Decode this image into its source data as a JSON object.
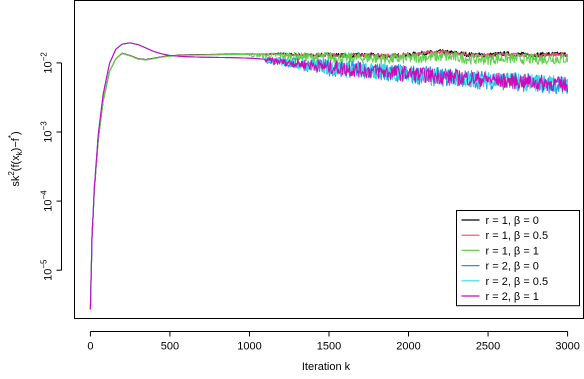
{
  "chart_data": {
    "type": "line",
    "xlabel": "Iteration  k",
    "ylabel_parts": [
      "sk",
      "2",
      "(f(x",
      "k",
      ")−f",
      "*",
      ")"
    ],
    "y_scale": "log",
    "xlim": [
      -100,
      3100
    ],
    "ylim": [
      2e-06,
      0.08
    ],
    "x_ticks": [
      0,
      500,
      1000,
      1500,
      2000,
      2500,
      3000
    ],
    "x_tick_labels": [
      "0",
      "500",
      "1000",
      "1500",
      "2000",
      "2500",
      "3000"
    ],
    "y_ticks": [
      {
        "value": 0.01,
        "base": "10",
        "exp": "−2"
      },
      {
        "value": 0.001,
        "base": "10",
        "exp": "−3"
      },
      {
        "value": 0.0001,
        "base": "10",
        "exp": "−4"
      },
      {
        "value": 1e-05,
        "base": "10",
        "exp": "−5"
      }
    ],
    "grid": false,
    "legend_position": "bottom-right",
    "series": [
      {
        "name": "r = 1, β = 0",
        "color": "#000000",
        "x": [
          0,
          10,
          25,
          50,
          80,
          120,
          160,
          200,
          250,
          300,
          350,
          400,
          450,
          500,
          600,
          700,
          800,
          900,
          1000,
          1100,
          1200,
          1300,
          1400,
          1500,
          1600,
          1700,
          1800,
          1900,
          2000,
          2100,
          2200,
          2300,
          2400,
          2500,
          2600,
          2700,
          2800,
          2900,
          3000
        ],
        "y": [
          2.7e-06,
          3e-05,
          0.00015,
          0.0008,
          0.0028,
          0.0075,
          0.0115,
          0.0138,
          0.0128,
          0.0115,
          0.0112,
          0.0117,
          0.0123,
          0.0127,
          0.0131,
          0.0132,
          0.0133,
          0.0134,
          0.0135,
          0.0134,
          0.0137,
          0.0133,
          0.0131,
          0.0134,
          0.0131,
          0.0133,
          0.0131,
          0.0129,
          0.0134,
          0.0142,
          0.0148,
          0.0142,
          0.0134,
          0.0133,
          0.0139,
          0.0136,
          0.0134,
          0.0137,
          0.0136
        ],
        "noise_from": 1100,
        "noise": 0.12
      },
      {
        "name": "r = 1, β = 0.5",
        "color": "#df536b",
        "x": [
          0,
          10,
          25,
          50,
          80,
          120,
          160,
          200,
          250,
          300,
          350,
          400,
          450,
          500,
          600,
          700,
          800,
          900,
          1000,
          1100,
          1200,
          1300,
          1400,
          1500,
          1600,
          1700,
          1800,
          1900,
          2000,
          2100,
          2200,
          2300,
          2400,
          2500,
          2600,
          2700,
          2800,
          2900,
          3000
        ],
        "y": [
          2.7e-06,
          3e-05,
          0.00015,
          0.0008,
          0.0028,
          0.0075,
          0.0115,
          0.0137,
          0.0127,
          0.0114,
          0.0111,
          0.0116,
          0.0122,
          0.0126,
          0.013,
          0.0131,
          0.0132,
          0.0133,
          0.0134,
          0.0133,
          0.0136,
          0.0132,
          0.013,
          0.0133,
          0.013,
          0.0132,
          0.013,
          0.0128,
          0.0133,
          0.0141,
          0.0146,
          0.0141,
          0.0133,
          0.0132,
          0.0137,
          0.0134,
          0.0132,
          0.0135,
          0.0134
        ],
        "noise_from": 1100,
        "noise": 0.1
      },
      {
        "name": "r = 1, β = 1",
        "color": "#61d04f",
        "x": [
          0,
          10,
          25,
          50,
          80,
          120,
          160,
          200,
          250,
          300,
          350,
          400,
          450,
          500,
          600,
          700,
          800,
          900,
          1000,
          1100,
          1200,
          1300,
          1400,
          1500,
          1600,
          1700,
          1800,
          1900,
          2000,
          2100,
          2200,
          2300,
          2400,
          2500,
          2600,
          2700,
          2800,
          2900,
          3000
        ],
        "y": [
          2.7e-06,
          3e-05,
          0.00015,
          0.0008,
          0.0028,
          0.0075,
          0.0115,
          0.0136,
          0.0126,
          0.0113,
          0.011,
          0.0115,
          0.0121,
          0.0125,
          0.0129,
          0.013,
          0.0131,
          0.0132,
          0.0132,
          0.0131,
          0.0133,
          0.0129,
          0.0126,
          0.0128,
          0.0124,
          0.0125,
          0.0123,
          0.012,
          0.0123,
          0.0128,
          0.0131,
          0.0127,
          0.012,
          0.0119,
          0.0123,
          0.012,
          0.0119,
          0.0121,
          0.012
        ],
        "noise_from": 1000,
        "noise": 0.28
      },
      {
        "name": "r = 2, β = 0",
        "color": "#2297e6",
        "x": [
          0,
          10,
          25,
          50,
          80,
          120,
          160,
          200,
          250,
          300,
          350,
          400,
          450,
          500,
          600,
          700,
          800,
          900,
          1000,
          1100,
          1200,
          1300,
          1400,
          1500,
          1600,
          1700,
          1800,
          1900,
          2000,
          2100,
          2200,
          2300,
          2400,
          2500,
          2600,
          2700,
          2800,
          2900,
          3000
        ],
        "y": [
          2.7e-06,
          3e-05,
          0.00016,
          0.00095,
          0.0035,
          0.0098,
          0.0158,
          0.0187,
          0.0195,
          0.0184,
          0.0164,
          0.0146,
          0.0135,
          0.0128,
          0.0123,
          0.0121,
          0.012,
          0.0119,
          0.0117,
          0.0113,
          0.0108,
          0.0103,
          0.0098,
          0.0093,
          0.0089,
          0.0085,
          0.0081,
          0.0078,
          0.0075,
          0.0072,
          0.0069,
          0.0067,
          0.0064,
          0.0062,
          0.006,
          0.0058,
          0.0056,
          0.0054,
          0.0052
        ],
        "noise_from": 1100,
        "noise": 0.5
      },
      {
        "name": "r = 2, β = 0.5",
        "color": "#28e2e5",
        "x": [
          0,
          10,
          25,
          50,
          80,
          120,
          160,
          200,
          250,
          300,
          350,
          400,
          450,
          500,
          600,
          700,
          800,
          900,
          1000,
          1100,
          1200,
          1300,
          1400,
          1500,
          1600,
          1700,
          1800,
          1900,
          2000,
          2100,
          2200,
          2300,
          2400,
          2500,
          2600,
          2700,
          2800,
          2900,
          3000
        ],
        "y": [
          2.7e-06,
          3e-05,
          0.00016,
          0.00095,
          0.0035,
          0.0098,
          0.0158,
          0.0187,
          0.0195,
          0.0184,
          0.0164,
          0.0146,
          0.0135,
          0.0128,
          0.0123,
          0.0121,
          0.012,
          0.0119,
          0.0117,
          0.0113,
          0.0108,
          0.0103,
          0.0098,
          0.0093,
          0.0089,
          0.0085,
          0.0081,
          0.0078,
          0.0075,
          0.0072,
          0.0069,
          0.0067,
          0.0064,
          0.0062,
          0.006,
          0.0058,
          0.0056,
          0.0054,
          0.0052
        ],
        "noise_from": 1100,
        "noise": 0.45
      },
      {
        "name": "r = 2, β = 1",
        "color": "#cd0bbc",
        "x": [
          0,
          10,
          25,
          50,
          80,
          120,
          160,
          200,
          250,
          300,
          350,
          400,
          450,
          500,
          600,
          700,
          800,
          900,
          1000,
          1100,
          1200,
          1300,
          1400,
          1500,
          1600,
          1700,
          1800,
          1900,
          2000,
          2100,
          2200,
          2300,
          2400,
          2500,
          2600,
          2700,
          2800,
          2900,
          3000
        ],
        "y": [
          2.7e-06,
          3e-05,
          0.00016,
          0.00095,
          0.0035,
          0.0098,
          0.0158,
          0.0187,
          0.0195,
          0.0184,
          0.0164,
          0.0146,
          0.0135,
          0.0128,
          0.0123,
          0.0121,
          0.012,
          0.0119,
          0.0117,
          0.0113,
          0.0108,
          0.0103,
          0.0098,
          0.0093,
          0.0089,
          0.0085,
          0.0081,
          0.0078,
          0.0075,
          0.0072,
          0.0069,
          0.0067,
          0.0064,
          0.0062,
          0.006,
          0.0058,
          0.0056,
          0.0054,
          0.0052
        ],
        "noise_from": 1100,
        "noise": 0.4
      }
    ]
  }
}
